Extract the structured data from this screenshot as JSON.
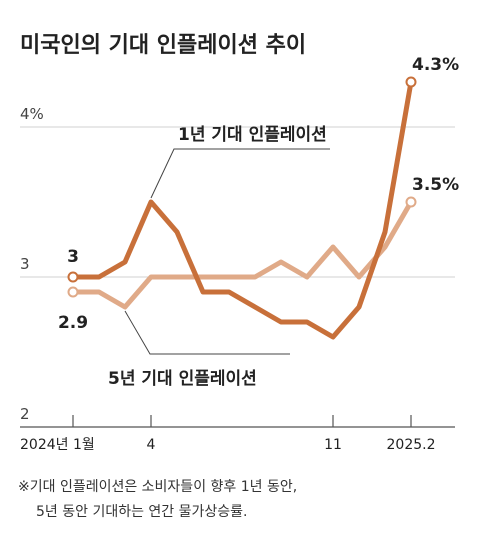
{
  "chart_data": {
    "type": "line",
    "title": "미국인의 기대 인플레이션 추이",
    "x": [
      "2024-01",
      "2024-02",
      "2024-03",
      "2024-04",
      "2024-05",
      "2024-06",
      "2024-07",
      "2024-08",
      "2024-09",
      "2024-10",
      "2024-11",
      "2024-12",
      "2025-01",
      "2025-02"
    ],
    "x_tick_labels": [
      {
        "x": "2024-01",
        "label": "2024년 1월"
      },
      {
        "x": "2024-04",
        "label": "4"
      },
      {
        "x": "2024-11",
        "label": "11"
      },
      {
        "x": "2025-02",
        "label": "2025.2"
      }
    ],
    "y_tick_labels": [
      {
        "value": 4,
        "label": "4%"
      },
      {
        "value": 3,
        "label": "3"
      },
      {
        "value": 2,
        "label": "2"
      }
    ],
    "ylim": [
      2,
      4.5
    ],
    "grid": "horizontal",
    "series": [
      {
        "name": "1년 기대 인플레이션",
        "color": "#c8703a",
        "values": [
          3.0,
          3.0,
          3.1,
          3.5,
          3.3,
          2.9,
          2.9,
          2.8,
          2.7,
          2.7,
          2.6,
          2.8,
          3.3,
          4.3
        ],
        "start_label": "3",
        "end_label": "4.3%"
      },
      {
        "name": "5년 기대 인플레이션",
        "color": "#e0aa88",
        "values": [
          2.9,
          2.9,
          2.8,
          3.0,
          3.0,
          3.0,
          3.0,
          3.0,
          3.1,
          3.0,
          3.2,
          3.0,
          3.2,
          3.5
        ],
        "start_label": "2.9",
        "end_label": "3.5%"
      }
    ],
    "footnote": [
      "※기대 인플레이션은 소비자들이 향후 1년 동안,",
      "5년 동안 기대하는 연간 물가상승률."
    ]
  }
}
